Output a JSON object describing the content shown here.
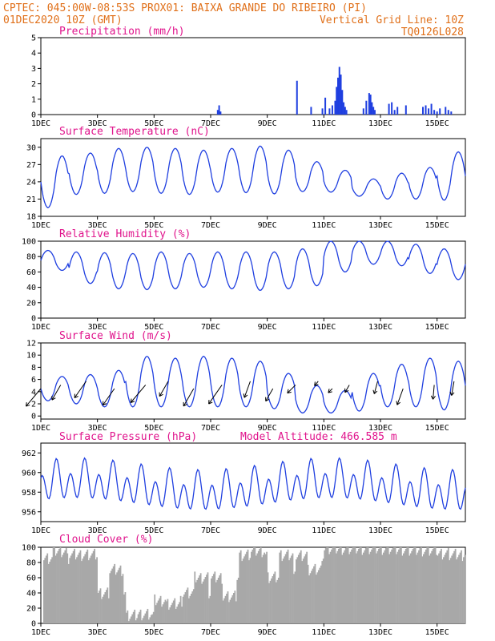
{
  "header": {
    "line1_left": "CPTEC:  045:00W-08:53S  PROX01: BAIXA GRANDE DO RIBEIRO (PI)",
    "line2_left": "01DEC2020 10Z (GMT)",
    "line2_right": "Vertical Grid Line: 10Z",
    "line3_right": "TQ0126L028"
  },
  "colors": {
    "header": "#e0701a",
    "panel_title": "#e0148c",
    "series": "#1f3fe0",
    "cloud": "#a8a8a8",
    "wind_arrow": "#000000"
  },
  "x_axis": {
    "start": "01DEC2020 00Z",
    "end": "16DEC2020 00Z",
    "tick_labels": [
      {
        "day": 1,
        "label": "1DEC"
      },
      {
        "day": 3,
        "label": "3DEC"
      },
      {
        "day": 5,
        "label": "5DEC"
      },
      {
        "day": 7,
        "label": "7DEC"
      },
      {
        "day": 9,
        "label": "9DEC"
      },
      {
        "day": 11,
        "label": "11DEC"
      },
      {
        "day": 13,
        "label": "13DEC"
      },
      {
        "day": 15,
        "label": "15DEC"
      }
    ]
  },
  "chart_data": [
    {
      "id": "precip",
      "type": "bar",
      "title": "Precipitation (mm/h)",
      "ylim": [
        0,
        5
      ],
      "yticks": [
        0,
        1,
        2,
        3,
        4,
        5
      ],
      "values_note": "mm/h hourly bars, estimated",
      "x_days": [
        7.25,
        7.3,
        7.35,
        10.05,
        10.55,
        10.95,
        11.05,
        11.2,
        11.3,
        11.4,
        11.45,
        11.5,
        11.55,
        11.6,
        11.65,
        11.7,
        11.75,
        11.8,
        12.4,
        12.5,
        12.6,
        12.65,
        12.7,
        12.75,
        12.8,
        13.3,
        13.4,
        13.5,
        13.6,
        13.9,
        14.5,
        14.6,
        14.7,
        14.8,
        14.9,
        15.0,
        15.1,
        15.3,
        15.4,
        15.5
      ],
      "values": [
        0.3,
        0.6,
        0.2,
        2.2,
        0.5,
        0.4,
        1.1,
        0.4,
        0.6,
        0.9,
        1.8,
        2.4,
        3.1,
        2.6,
        1.6,
        0.8,
        0.5,
        0.3,
        0.4,
        0.9,
        1.4,
        1.3,
        0.8,
        0.5,
        0.3,
        0.7,
        0.8,
        0.3,
        0.5,
        0.6,
        0.5,
        0.6,
        0.4,
        0.7,
        0.3,
        0.2,
        0.4,
        0.5,
        0.3,
        0.2
      ]
    },
    {
      "id": "temp",
      "type": "line",
      "title": "Surface Temperature (nC)",
      "ylim": [
        18,
        31.5
      ],
      "yticks": [
        18,
        21,
        24,
        27,
        30
      ],
      "daily_min": [
        19.5,
        21.8,
        22.0,
        22.3,
        22.0,
        21.8,
        22.2,
        22.1,
        21.9,
        22.3,
        22.2,
        21.5,
        21.0,
        21.0,
        20.8
      ],
      "daily_max": [
        28.5,
        29.0,
        29.8,
        30.0,
        29.8,
        29.5,
        29.8,
        30.2,
        29.5,
        27.5,
        26.0,
        24.5,
        25.5,
        26.5,
        29.2
      ]
    },
    {
      "id": "rh",
      "type": "line",
      "title": "Relative Humidity (%)",
      "ylim": [
        0,
        100
      ],
      "yticks": [
        0,
        20,
        40,
        60,
        80,
        100
      ],
      "daily_min": [
        62,
        45,
        38,
        37,
        38,
        40,
        38,
        36,
        38,
        42,
        60,
        70,
        68,
        58,
        50
      ],
      "daily_max": [
        88,
        86,
        85,
        84,
        86,
        84,
        86,
        86,
        86,
        90,
        100,
        100,
        100,
        96,
        90
      ]
    },
    {
      "id": "wind",
      "type": "line",
      "title": "Surface Wind (m/s)",
      "ylim": [
        -0.5,
        12
      ],
      "yticks": [
        0,
        2,
        4,
        6,
        8,
        10,
        12
      ],
      "daily_min": [
        2.5,
        2.0,
        1.5,
        1.5,
        1.5,
        1.5,
        1.5,
        1.5,
        1.2,
        0.5,
        0.5,
        0.8,
        1.5,
        1.5,
        1.0
      ],
      "daily_max": [
        6.5,
        6.8,
        7.5,
        9.8,
        9.5,
        9.8,
        9.5,
        9.0,
        7.0,
        5.0,
        4.2,
        7.0,
        8.5,
        9.5,
        9.0
      ],
      "arrows_note": "wind barbs, direction in degrees the arrow points to",
      "arrow_days": [
        1.0,
        1.7,
        2.6,
        3.6,
        4.7,
        5.5,
        6.4,
        7.4,
        8.4,
        9.2,
        10.0,
        10.8,
        11.3,
        11.9,
        12.9,
        13.8,
        14.9,
        15.6
      ],
      "arrow_lengths": [
        1.6,
        1.2,
        1.4,
        1.4,
        1.6,
        1.2,
        1.4,
        1.6,
        1.2,
        1.0,
        0.8,
        0.4,
        0.4,
        0.6,
        0.9,
        1.2,
        1.0,
        1.0
      ],
      "arrow_dirs": [
        220,
        210,
        215,
        215,
        220,
        210,
        210,
        215,
        200,
        210,
        225,
        220,
        225,
        210,
        195,
        200,
        185,
        190
      ]
    },
    {
      "id": "pressure",
      "type": "line",
      "title": "Surface Pressure (hPa)",
      "subtitle": "Model Altitude: 466.585 m",
      "ylim": [
        955.0,
        963.0
      ],
      "yticks": [
        956,
        958,
        960,
        962
      ],
      "note": "semi-diurnal pressure wave"
    },
    {
      "id": "cloud",
      "type": "area",
      "title": "Cloud Cover (%)",
      "ylim": [
        0,
        100
      ],
      "yticks": [
        0,
        20,
        40,
        60,
        80,
        100
      ],
      "day_levels": [
        95,
        90,
        70,
        12,
        25,
        60,
        35,
        95,
        90,
        70,
        98,
        98,
        97,
        96,
        90
      ],
      "night_levels": [
        85,
        90,
        40,
        10,
        30,
        40,
        60,
        90,
        60,
        90,
        98,
        98,
        98,
        96,
        92
      ]
    }
  ]
}
